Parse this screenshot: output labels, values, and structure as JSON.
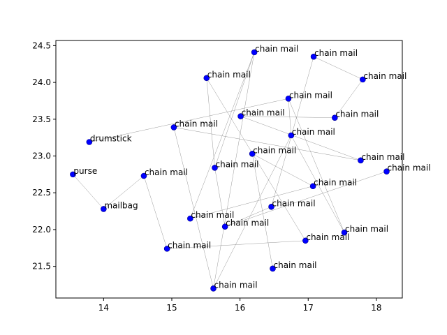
{
  "chart_data": {
    "type": "scatter",
    "title": "",
    "xlabel": "",
    "ylabel": "",
    "xlim": [
      13.3,
      18.38
    ],
    "ylim": [
      21.07,
      24.57
    ],
    "xticks": [
      14,
      15,
      16,
      17,
      18
    ],
    "yticks": [
      21.5,
      22.0,
      22.5,
      23.0,
      23.5,
      24.0,
      24.5
    ],
    "grid": false,
    "marker_color": "#0000ff",
    "edge_color": "#808080",
    "points": [
      {
        "label": "purse",
        "x": 13.55,
        "y": 22.75
      },
      {
        "label": "drumstick",
        "x": 13.79,
        "y": 23.19
      },
      {
        "label": "mailbag",
        "x": 14.0,
        "y": 22.28
      },
      {
        "label": "chain mail",
        "x": 14.59,
        "y": 22.73
      },
      {
        "label": "chain mail",
        "x": 14.93,
        "y": 21.74
      },
      {
        "label": "chain mail",
        "x": 15.03,
        "y": 23.39
      },
      {
        "label": "chain mail",
        "x": 15.27,
        "y": 22.15
      },
      {
        "label": "chain mail",
        "x": 15.51,
        "y": 24.06
      },
      {
        "label": "chain mail",
        "x": 15.61,
        "y": 21.2
      },
      {
        "label": "chain mail",
        "x": 15.63,
        "y": 22.84
      },
      {
        "label": "chain mail",
        "x": 15.78,
        "y": 22.04
      },
      {
        "label": "chain mail",
        "x": 16.01,
        "y": 23.54
      },
      {
        "label": "chain mail",
        "x": 16.18,
        "y": 23.03
      },
      {
        "label": "chain mail",
        "x": 16.21,
        "y": 24.41
      },
      {
        "label": "chain mail",
        "x": 16.46,
        "y": 22.31
      },
      {
        "label": "chain mail",
        "x": 16.48,
        "y": 21.47
      },
      {
        "label": "chain mail",
        "x": 16.71,
        "y": 23.78
      },
      {
        "label": "chain mail",
        "x": 16.75,
        "y": 23.28
      },
      {
        "label": "chain mail",
        "x": 16.96,
        "y": 21.85
      },
      {
        "label": "chain mail",
        "x": 17.07,
        "y": 22.59
      },
      {
        "label": "chain mail",
        "x": 17.08,
        "y": 24.35
      },
      {
        "label": "chain mail",
        "x": 17.39,
        "y": 23.52
      },
      {
        "label": "chain mail",
        "x": 17.53,
        "y": 21.96
      },
      {
        "label": "chain mail",
        "x": 17.77,
        "y": 22.94
      },
      {
        "label": "chain mail",
        "x": 17.8,
        "y": 24.04
      },
      {
        "label": "chain mail",
        "x": 18.15,
        "y": 22.79
      }
    ],
    "edges": [
      [
        0,
        2
      ],
      [
        2,
        3
      ],
      [
        3,
        4
      ],
      [
        4,
        18
      ],
      [
        1,
        16
      ],
      [
        16,
        17
      ],
      [
        17,
        22
      ],
      [
        5,
        23
      ],
      [
        5,
        8
      ],
      [
        8,
        13
      ],
      [
        13,
        6
      ],
      [
        6,
        19
      ],
      [
        19,
        12
      ],
      [
        12,
        15
      ],
      [
        7,
        18
      ],
      [
        7,
        9
      ],
      [
        9,
        10
      ],
      [
        10,
        25
      ],
      [
        20,
        24
      ],
      [
        24,
        21
      ],
      [
        21,
        11
      ],
      [
        11,
        23
      ],
      [
        16,
        22
      ],
      [
        17,
        8
      ],
      [
        14,
        10
      ],
      [
        14,
        20
      ],
      [
        9,
        13
      ]
    ]
  }
}
